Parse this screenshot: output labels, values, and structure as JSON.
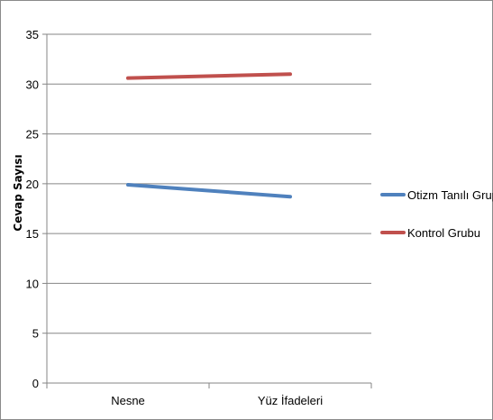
{
  "chart_data": {
    "type": "line",
    "title": "",
    "xlabel": "",
    "ylabel": "Cevap Sayısı",
    "categories": [
      "Nesne",
      "Yüz İfadeleri"
    ],
    "ylim": [
      0,
      35
    ],
    "yticks": [
      "0",
      "5",
      "10",
      "15",
      "20",
      "25",
      "30",
      "35"
    ],
    "grid": true,
    "legend_position": "right",
    "series": [
      {
        "name": "Otizm Tanılı Grup",
        "values": [
          19.9,
          18.7
        ],
        "color": "#4f81bd"
      },
      {
        "name": "Kontrol Grubu",
        "values": [
          30.6,
          31.0
        ],
        "color": "#c0504d"
      }
    ]
  }
}
